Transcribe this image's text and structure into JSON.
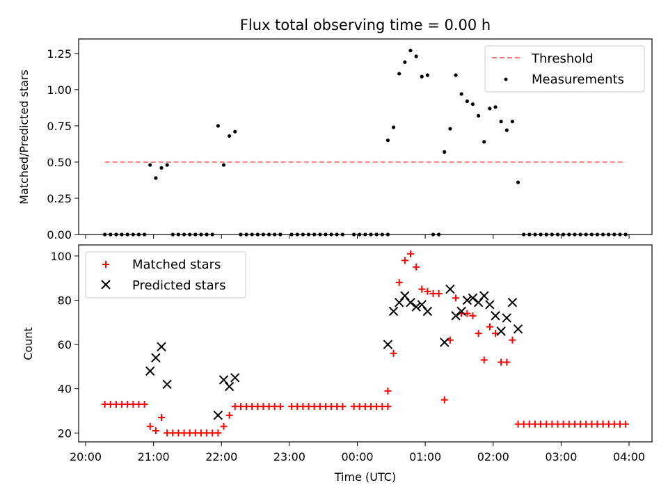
{
  "chart_data": [
    {
      "type": "scatter",
      "title": "Flux total observing time = 0.00 h",
      "xlabel": "",
      "ylabel": "Matched/Predicted stars",
      "xlim": [
        "20:00",
        "04:00"
      ],
      "ylim": [
        0,
        1.35
      ],
      "yticks": [
        "0.00",
        "0.25",
        "0.50",
        "0.75",
        "1.00",
        "1.25"
      ],
      "legend_position": "top-right",
      "threshold": {
        "name": "Threshold",
        "value": 0.5,
        "x_range": [
          "20:17",
          "03:57"
        ],
        "color": "#ff7b7b",
        "style": "dashed"
      },
      "series": [
        {
          "name": "Measurements",
          "marker": "dot",
          "color": "#000000",
          "points": [
            [
              "20:17",
              0
            ],
            [
              "20:22",
              0
            ],
            [
              "20:27",
              0
            ],
            [
              "20:32",
              0
            ],
            [
              "20:37",
              0
            ],
            [
              "20:42",
              0
            ],
            [
              "20:47",
              0
            ],
            [
              "20:52",
              0
            ],
            [
              "20:57",
              0.48
            ],
            [
              "21:02",
              0.39
            ],
            [
              "21:07",
              0.46
            ],
            [
              "21:12",
              0.48
            ],
            [
              "21:17",
              0
            ],
            [
              "21:22",
              0
            ],
            [
              "21:27",
              0
            ],
            [
              "21:32",
              0
            ],
            [
              "21:37",
              0
            ],
            [
              "21:42",
              0
            ],
            [
              "21:47",
              0
            ],
            [
              "21:52",
              0
            ],
            [
              "21:57",
              0.75
            ],
            [
              "22:02",
              0.48
            ],
            [
              "22:07",
              0.68
            ],
            [
              "22:12",
              0.71
            ],
            [
              "22:17",
              0
            ],
            [
              "22:22",
              0
            ],
            [
              "22:27",
              0
            ],
            [
              "22:32",
              0
            ],
            [
              "22:37",
              0
            ],
            [
              "22:42",
              0
            ],
            [
              "22:47",
              0
            ],
            [
              "22:52",
              0
            ],
            [
              "23:02",
              0
            ],
            [
              "23:07",
              0
            ],
            [
              "23:12",
              0
            ],
            [
              "23:17",
              0
            ],
            [
              "23:22",
              0
            ],
            [
              "23:27",
              0
            ],
            [
              "23:32",
              0
            ],
            [
              "23:37",
              0
            ],
            [
              "23:42",
              0
            ],
            [
              "23:47",
              0
            ],
            [
              "23:57",
              0
            ],
            [
              "00:02",
              0
            ],
            [
              "00:07",
              0
            ],
            [
              "00:12",
              0
            ],
            [
              "00:17",
              0
            ],
            [
              "00:22",
              0
            ],
            [
              "00:27",
              0
            ],
            [
              "00:27",
              0.65
            ],
            [
              "00:32",
              0.74
            ],
            [
              "00:37",
              1.11
            ],
            [
              "00:42",
              1.19
            ],
            [
              "00:47",
              1.27
            ],
            [
              "00:52",
              1.23
            ],
            [
              "00:57",
              1.09
            ],
            [
              "01:02",
              1.1
            ],
            [
              "01:07",
              0
            ],
            [
              "01:12",
              0
            ],
            [
              "01:17",
              0.57
            ],
            [
              "01:22",
              0.73
            ],
            [
              "01:27",
              1.1
            ],
            [
              "01:32",
              0.97
            ],
            [
              "01:37",
              0.92
            ],
            [
              "01:42",
              0.9
            ],
            [
              "01:47",
              0.82
            ],
            [
              "01:52",
              0.64
            ],
            [
              "01:57",
              0.87
            ],
            [
              "02:02",
              0.88
            ],
            [
              "02:07",
              0.78
            ],
            [
              "02:12",
              0.72
            ],
            [
              "02:17",
              0.78
            ],
            [
              "02:22",
              0.36
            ],
            [
              "02:27",
              0
            ],
            [
              "02:32",
              0
            ],
            [
              "02:37",
              0
            ],
            [
              "02:42",
              0
            ],
            [
              "02:47",
              0
            ],
            [
              "02:52",
              0
            ],
            [
              "02:57",
              0
            ],
            [
              "03:02",
              0
            ],
            [
              "03:07",
              0
            ],
            [
              "03:12",
              0
            ],
            [
              "03:17",
              0
            ],
            [
              "03:22",
              0
            ],
            [
              "03:27",
              0
            ],
            [
              "03:32",
              0
            ],
            [
              "03:37",
              0
            ],
            [
              "03:42",
              0
            ],
            [
              "03:47",
              0
            ],
            [
              "03:52",
              0
            ],
            [
              "03:57",
              0
            ]
          ]
        }
      ]
    },
    {
      "type": "scatter",
      "title": "",
      "xlabel": "Time (UTC)",
      "ylabel": "Count",
      "xlim": [
        "20:00",
        "04:00"
      ],
      "ylim": [
        16,
        105
      ],
      "xticks": [
        "20:00",
        "21:00",
        "22:00",
        "23:00",
        "00:00",
        "01:00",
        "02:00",
        "03:00",
        "04:00"
      ],
      "yticks": [
        "20",
        "40",
        "60",
        "80",
        "100"
      ],
      "legend_position": "top-left",
      "series": [
        {
          "name": "Matched stars",
          "marker": "plus",
          "color": "#ff0000",
          "points": [
            [
              "20:17",
              33
            ],
            [
              "20:22",
              33
            ],
            [
              "20:27",
              33
            ],
            [
              "20:32",
              33
            ],
            [
              "20:37",
              33
            ],
            [
              "20:42",
              33
            ],
            [
              "20:47",
              33
            ],
            [
              "20:52",
              33
            ],
            [
              "20:57",
              23
            ],
            [
              "21:02",
              21
            ],
            [
              "21:07",
              27
            ],
            [
              "21:12",
              20
            ],
            [
              "21:17",
              20
            ],
            [
              "21:22",
              20
            ],
            [
              "21:27",
              20
            ],
            [
              "21:32",
              20
            ],
            [
              "21:37",
              20
            ],
            [
              "21:42",
              20
            ],
            [
              "21:47",
              20
            ],
            [
              "21:52",
              20
            ],
            [
              "21:57",
              20
            ],
            [
              "22:02",
              23
            ],
            [
              "22:07",
              28
            ],
            [
              "22:12",
              32
            ],
            [
              "22:17",
              32
            ],
            [
              "22:22",
              32
            ],
            [
              "22:27",
              32
            ],
            [
              "22:32",
              32
            ],
            [
              "22:37",
              32
            ],
            [
              "22:42",
              32
            ],
            [
              "22:47",
              32
            ],
            [
              "22:52",
              32
            ],
            [
              "23:02",
              32
            ],
            [
              "23:07",
              32
            ],
            [
              "23:12",
              32
            ],
            [
              "23:17",
              32
            ],
            [
              "23:22",
              32
            ],
            [
              "23:27",
              32
            ],
            [
              "23:32",
              32
            ],
            [
              "23:37",
              32
            ],
            [
              "23:42",
              32
            ],
            [
              "23:47",
              32
            ],
            [
              "23:57",
              32
            ],
            [
              "00:02",
              32
            ],
            [
              "00:07",
              32
            ],
            [
              "00:12",
              32
            ],
            [
              "00:17",
              32
            ],
            [
              "00:22",
              32
            ],
            [
              "00:27",
              32
            ],
            [
              "00:27",
              39
            ],
            [
              "00:32",
              56
            ],
            [
              "00:37",
              88
            ],
            [
              "00:42",
              98
            ],
            [
              "00:47",
              101
            ],
            [
              "00:52",
              95
            ],
            [
              "00:57",
              85
            ],
            [
              "01:02",
              84
            ],
            [
              "01:07",
              83
            ],
            [
              "01:12",
              83
            ],
            [
              "01:17",
              35
            ],
            [
              "01:22",
              62
            ],
            [
              "01:27",
              81
            ],
            [
              "01:32",
              74
            ],
            [
              "01:37",
              74
            ],
            [
              "01:42",
              73
            ],
            [
              "01:47",
              65
            ],
            [
              "01:52",
              53
            ],
            [
              "01:57",
              68
            ],
            [
              "02:02",
              65
            ],
            [
              "02:07",
              52
            ],
            [
              "02:12",
              52
            ],
            [
              "02:17",
              62
            ],
            [
              "02:22",
              24
            ],
            [
              "02:27",
              24
            ],
            [
              "02:32",
              24
            ],
            [
              "02:37",
              24
            ],
            [
              "02:42",
              24
            ],
            [
              "02:47",
              24
            ],
            [
              "02:52",
              24
            ],
            [
              "02:57",
              24
            ],
            [
              "03:02",
              24
            ],
            [
              "03:07",
              24
            ],
            [
              "03:12",
              24
            ],
            [
              "03:17",
              24
            ],
            [
              "03:22",
              24
            ],
            [
              "03:27",
              24
            ],
            [
              "03:32",
              24
            ],
            [
              "03:37",
              24
            ],
            [
              "03:42",
              24
            ],
            [
              "03:47",
              24
            ],
            [
              "03:52",
              24
            ],
            [
              "03:57",
              24
            ]
          ]
        },
        {
          "name": "Predicted stars",
          "marker": "x",
          "color": "#000000",
          "points": [
            [
              "20:57",
              48
            ],
            [
              "21:02",
              54
            ],
            [
              "21:07",
              59
            ],
            [
              "21:12",
              42
            ],
            [
              "21:57",
              28
            ],
            [
              "22:02",
              44
            ],
            [
              "22:07",
              41
            ],
            [
              "22:12",
              45
            ],
            [
              "00:27",
              60
            ],
            [
              "00:32",
              75
            ],
            [
              "00:37",
              79
            ],
            [
              "00:42",
              82
            ],
            [
              "00:47",
              79
            ],
            [
              "00:52",
              77
            ],
            [
              "00:57",
              78
            ],
            [
              "01:02",
              75
            ],
            [
              "01:17",
              61
            ],
            [
              "01:22",
              85
            ],
            [
              "01:27",
              73
            ],
            [
              "01:32",
              75
            ],
            [
              "01:37",
              80
            ],
            [
              "01:42",
              81
            ],
            [
              "01:47",
              79
            ],
            [
              "01:52",
              82
            ],
            [
              "01:57",
              78
            ],
            [
              "02:02",
              73
            ],
            [
              "02:07",
              66
            ],
            [
              "02:12",
              72
            ],
            [
              "02:17",
              79
            ],
            [
              "02:22",
              67
            ]
          ]
        }
      ]
    }
  ]
}
